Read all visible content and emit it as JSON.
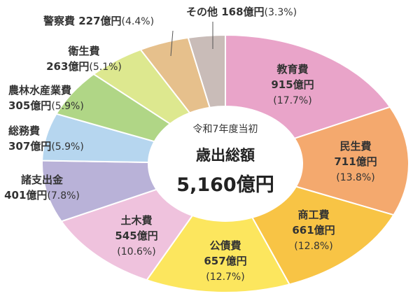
{
  "chart_data": {
    "type": "pie",
    "title": "令和7年度当初",
    "subtitle": "歳出総額",
    "total": "5,160億円",
    "slices": [
      {
        "name": "教育費",
        "value": 915,
        "value_label": "915億円",
        "pct_label": "(17.7%)",
        "color": "#e9a4c9"
      },
      {
        "name": "民生費",
        "value": 711,
        "value_label": "711億円",
        "pct_label": "(13.8%)",
        "color": "#f4a96e"
      },
      {
        "name": "商工費",
        "value": 661,
        "value_label": "661億円",
        "pct_label": "(12.8%)",
        "color": "#f8c445"
      },
      {
        "name": "公債費",
        "value": 657,
        "value_label": "657億円",
        "pct_label": "(12.7%)",
        "color": "#fce65e"
      },
      {
        "name": "土木費",
        "value": 545,
        "value_label": "545億円",
        "pct_label": "(10.6%)",
        "color": "#efc2dd"
      },
      {
        "name": "諸支出金",
        "value": 401,
        "value_label": "401億円",
        "pct_label": "(7.8%)",
        "color": "#b9b2d8"
      },
      {
        "name": "総務費",
        "value": 307,
        "value_label": "307億円",
        "pct_label": "(5.9%)",
        "color": "#b6d6ef"
      },
      {
        "name": "農林水産業費",
        "value": 305,
        "value_label": "305億円",
        "pct_label": "(5.9%)",
        "color": "#b0d686"
      },
      {
        "name": "衛生費",
        "value": 263,
        "value_label": "263億円",
        "pct_label": "(5.1%)",
        "color": "#dde88f"
      },
      {
        "name": "警察費",
        "value": 227,
        "value_label": "227億円",
        "pct_label": "(4.4%)",
        "color": "#e6c08c"
      },
      {
        "name": "その他",
        "value": 168,
        "value_label": "168億円",
        "pct_label": "(3.3%)",
        "color": "#c9bcb8"
      }
    ]
  }
}
